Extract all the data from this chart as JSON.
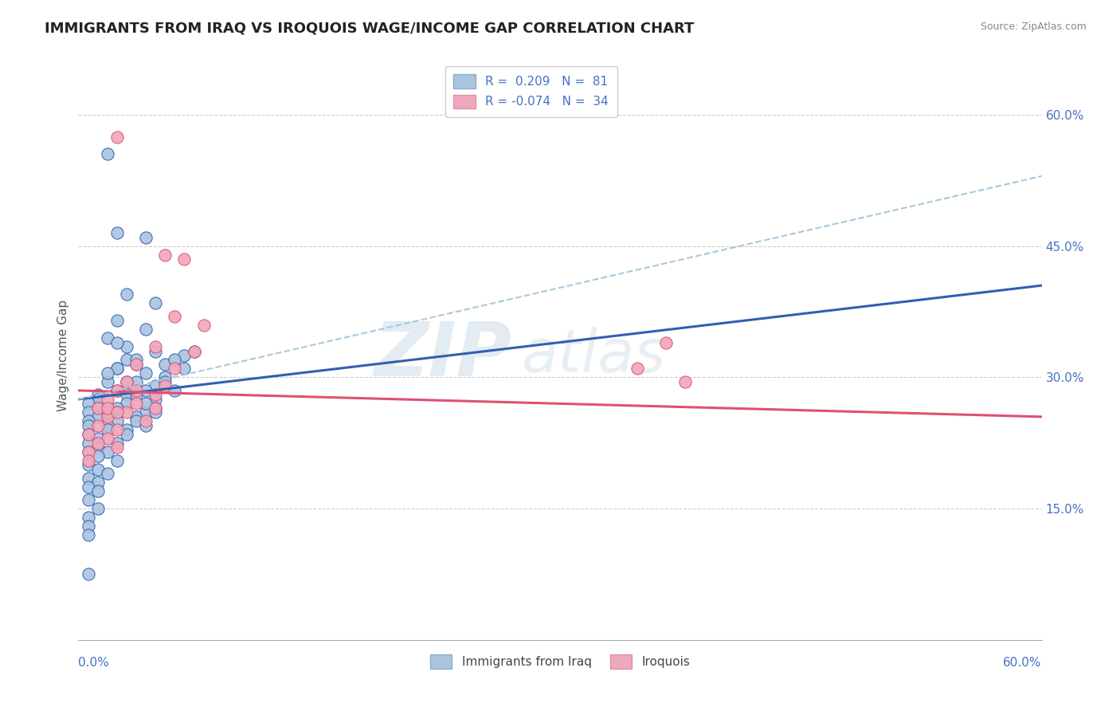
{
  "title": "IMMIGRANTS FROM IRAQ VS IROQUOIS WAGE/INCOME GAP CORRELATION CHART",
  "source": "Source: ZipAtlas.com",
  "ylabel": "Wage/Income Gap",
  "xlim": [
    0.0,
    0.1
  ],
  "ylim": [
    0.0,
    0.65
  ],
  "yticks": [
    0.15,
    0.3,
    0.45,
    0.6
  ],
  "ytick_labels": [
    "15.0%",
    "30.0%",
    "45.0%",
    "60.0%"
  ],
  "xtick_left_label": "0.0%",
  "xtick_right_label": "60.0%",
  "color_blue": "#aac4e0",
  "color_pink": "#f0a8bc",
  "line_blue": "#3060b0",
  "line_pink": "#e05070",
  "line_dashed": "#aac8dc",
  "blue_scatter": [
    [
      0.003,
      0.555
    ],
    [
      0.004,
      0.465
    ],
    [
      0.007,
      0.46
    ],
    [
      0.005,
      0.395
    ],
    [
      0.008,
      0.385
    ],
    [
      0.004,
      0.365
    ],
    [
      0.007,
      0.355
    ],
    [
      0.003,
      0.345
    ],
    [
      0.005,
      0.335
    ],
    [
      0.008,
      0.33
    ],
    [
      0.011,
      0.325
    ],
    [
      0.005,
      0.32
    ],
    [
      0.006,
      0.315
    ],
    [
      0.009,
      0.315
    ],
    [
      0.004,
      0.31
    ],
    [
      0.007,
      0.305
    ],
    [
      0.009,
      0.3
    ],
    [
      0.003,
      0.295
    ],
    [
      0.006,
      0.295
    ],
    [
      0.008,
      0.29
    ],
    [
      0.004,
      0.285
    ],
    [
      0.007,
      0.285
    ],
    [
      0.01,
      0.285
    ],
    [
      0.002,
      0.28
    ],
    [
      0.005,
      0.28
    ],
    [
      0.008,
      0.275
    ],
    [
      0.002,
      0.275
    ],
    [
      0.005,
      0.27
    ],
    [
      0.008,
      0.265
    ],
    [
      0.001,
      0.27
    ],
    [
      0.004,
      0.265
    ],
    [
      0.007,
      0.26
    ],
    [
      0.002,
      0.265
    ],
    [
      0.004,
      0.26
    ],
    [
      0.006,
      0.255
    ],
    [
      0.001,
      0.26
    ],
    [
      0.003,
      0.255
    ],
    [
      0.006,
      0.25
    ],
    [
      0.002,
      0.255
    ],
    [
      0.004,
      0.25
    ],
    [
      0.007,
      0.245
    ],
    [
      0.001,
      0.25
    ],
    [
      0.003,
      0.245
    ],
    [
      0.005,
      0.24
    ],
    [
      0.001,
      0.245
    ],
    [
      0.003,
      0.24
    ],
    [
      0.005,
      0.235
    ],
    [
      0.001,
      0.235
    ],
    [
      0.002,
      0.23
    ],
    [
      0.004,
      0.225
    ],
    [
      0.001,
      0.225
    ],
    [
      0.002,
      0.22
    ],
    [
      0.003,
      0.215
    ],
    [
      0.001,
      0.215
    ],
    [
      0.002,
      0.21
    ],
    [
      0.004,
      0.205
    ],
    [
      0.001,
      0.2
    ],
    [
      0.002,
      0.195
    ],
    [
      0.003,
      0.19
    ],
    [
      0.001,
      0.185
    ],
    [
      0.002,
      0.18
    ],
    [
      0.001,
      0.175
    ],
    [
      0.002,
      0.17
    ],
    [
      0.001,
      0.16
    ],
    [
      0.002,
      0.15
    ],
    [
      0.001,
      0.14
    ],
    [
      0.001,
      0.13
    ],
    [
      0.001,
      0.12
    ],
    [
      0.001,
      0.075
    ],
    [
      0.007,
      0.27
    ],
    [
      0.009,
      0.295
    ],
    [
      0.011,
      0.31
    ],
    [
      0.01,
      0.32
    ],
    [
      0.012,
      0.33
    ],
    [
      0.008,
      0.26
    ],
    [
      0.006,
      0.28
    ],
    [
      0.004,
      0.31
    ],
    [
      0.005,
      0.295
    ],
    [
      0.003,
      0.305
    ],
    [
      0.006,
      0.32
    ],
    [
      0.004,
      0.34
    ],
    [
      0.003,
      0.26
    ]
  ],
  "pink_scatter": [
    [
      0.004,
      0.575
    ],
    [
      0.009,
      0.44
    ],
    [
      0.011,
      0.435
    ],
    [
      0.01,
      0.37
    ],
    [
      0.013,
      0.36
    ],
    [
      0.008,
      0.335
    ],
    [
      0.012,
      0.33
    ],
    [
      0.006,
      0.315
    ],
    [
      0.01,
      0.31
    ],
    [
      0.005,
      0.295
    ],
    [
      0.009,
      0.29
    ],
    [
      0.004,
      0.285
    ],
    [
      0.008,
      0.28
    ],
    [
      0.003,
      0.275
    ],
    [
      0.006,
      0.27
    ],
    [
      0.002,
      0.265
    ],
    [
      0.005,
      0.26
    ],
    [
      0.003,
      0.255
    ],
    [
      0.007,
      0.25
    ],
    [
      0.002,
      0.245
    ],
    [
      0.004,
      0.24
    ],
    [
      0.001,
      0.235
    ],
    [
      0.003,
      0.23
    ],
    [
      0.002,
      0.225
    ],
    [
      0.004,
      0.22
    ],
    [
      0.001,
      0.215
    ],
    [
      0.001,
      0.205
    ],
    [
      0.006,
      0.285
    ],
    [
      0.003,
      0.265
    ],
    [
      0.008,
      0.265
    ],
    [
      0.004,
      0.26
    ],
    [
      0.061,
      0.34
    ],
    [
      0.058,
      0.31
    ],
    [
      0.063,
      0.295
    ]
  ],
  "blue_line_x": [
    0.0,
    0.1
  ],
  "blue_line_y": [
    0.275,
    0.405
  ],
  "pink_line_x": [
    0.0,
    0.1
  ],
  "pink_line_y": [
    0.285,
    0.255
  ],
  "dashed_line_x": [
    0.0,
    0.1
  ],
  "dashed_line_y": [
    0.275,
    0.53
  ]
}
